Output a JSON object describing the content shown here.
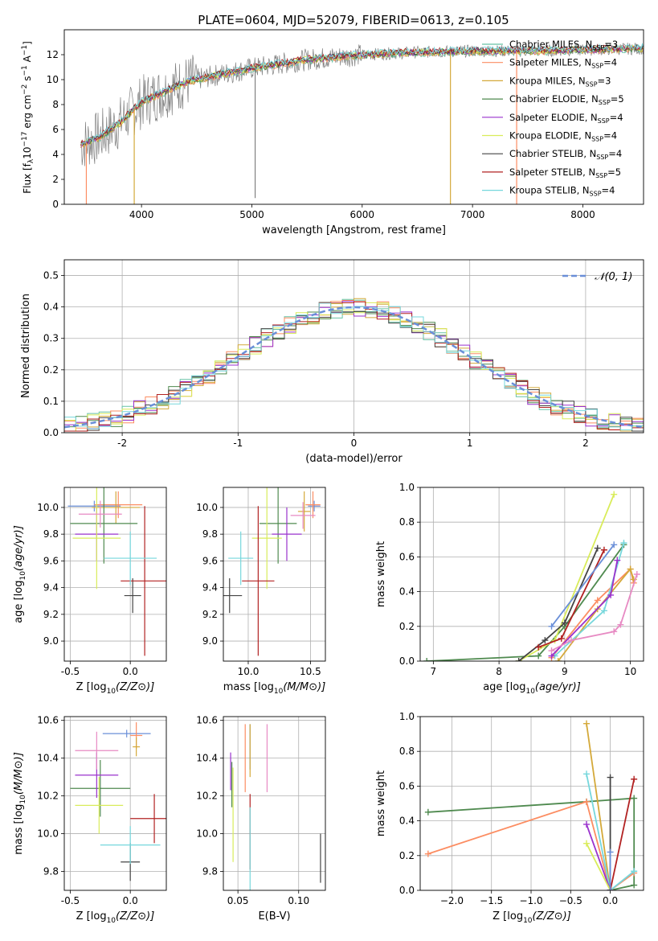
{
  "figure": {
    "title": "PLATE=0604, MJD=52079, FIBERID=0613, z=0.105"
  },
  "models": [
    {
      "name": "Chabrier MILES",
      "nssp": 3,
      "color": "#66c2a5"
    },
    {
      "name": "Salpeter MILES",
      "nssp": 4,
      "color": "#fc8d62"
    },
    {
      "name": "Kroupa MILES",
      "nssp": 3,
      "color": "#d4a93a"
    },
    {
      "name": "Chabrier ELODIE",
      "nssp": 5,
      "color": "#4f8a4f"
    },
    {
      "name": "Salpeter ELODIE",
      "nssp": 4,
      "color": "#9a32cd"
    },
    {
      "name": "Kroupa ELODIE",
      "nssp": 4,
      "color": "#d9ec5a"
    },
    {
      "name": "Chabrier STELIB",
      "nssp": 4,
      "color": "#444444"
    },
    {
      "name": "Salpeter STELIB",
      "nssp": 5,
      "color": "#b22222"
    },
    {
      "name": "Kroupa STELIB",
      "nssp": 4,
      "color": "#76d7dc"
    }
  ],
  "chart_data": [
    {
      "id": "spectrum",
      "type": "line",
      "xlabel": "wavelength [Angstrom, rest frame]",
      "ylabel": "Flux [f",
      "xlim": [
        3300,
        8550
      ],
      "ylim": [
        0,
        14
      ],
      "xticks": [
        4000,
        5000,
        6000,
        7000,
        8000
      ],
      "yticks": [
        0,
        2,
        4,
        6,
        8,
        10,
        12
      ],
      "legend_position": "top-right",
      "continuum": [
        [
          3450,
          4.8
        ],
        [
          3600,
          5.3
        ],
        [
          3800,
          6.5
        ],
        [
          4000,
          8.2
        ],
        [
          4200,
          9.0
        ],
        [
          4400,
          9.8
        ],
        [
          4700,
          10.4
        ],
        [
          5000,
          10.9
        ],
        [
          5500,
          11.6
        ],
        [
          6000,
          12.0
        ],
        [
          6500,
          12.2
        ],
        [
          7000,
          12.3
        ],
        [
          7500,
          12.3
        ],
        [
          8000,
          12.4
        ],
        [
          8550,
          12.5
        ]
      ],
      "absorption_lines": [
        [
          3500,
          0.0
        ],
        [
          3934,
          0.0
        ],
        [
          5030,
          0.5
        ],
        [
          6800,
          0.0
        ],
        [
          7400,
          0.0
        ]
      ]
    },
    {
      "id": "residuals",
      "type": "histogram",
      "xlabel": "(data-model)/error",
      "ylabel": "Normed distribution",
      "xlim": [
        -2.5,
        2.5
      ],
      "ylim": [
        0,
        0.55
      ],
      "xticks": [
        -2,
        -1,
        0,
        1,
        2
      ],
      "yticks": [
        0.0,
        0.1,
        0.2,
        0.3,
        0.4,
        0.5
      ],
      "legend": "𝒩(0, 1)",
      "legend_position": "top-right",
      "bin_width": 0.1
    },
    {
      "id": "age_vs_Z",
      "type": "errorbar",
      "xlabel": "Z [log",
      "ylabel": "age  [log",
      "xlim": [
        -0.55,
        0.3
      ],
      "ylim": [
        8.85,
        10.15
      ],
      "xticks": [
        -0.5,
        0.0
      ],
      "yticks": [
        9.0,
        9.2,
        9.4,
        9.6,
        9.8,
        10.0
      ],
      "points": [
        {
          "x": -0.3,
          "y": 10.01,
          "xerr": 0.22,
          "yerr": 0.04
        },
        {
          "x": -0.1,
          "y": 10.02,
          "xerr": 0.2,
          "yerr": 0.1
        },
        {
          "x": -0.12,
          "y": 10.0,
          "xerr": 0.2,
          "yerr": 0.12
        },
        {
          "x": -0.22,
          "y": 9.88,
          "xerr": 0.28,
          "yerr": 0.3
        },
        {
          "x": -0.28,
          "y": 9.8,
          "xerr": 0.18,
          "yerr": 0.2
        },
        {
          "x": -0.28,
          "y": 9.77,
          "xerr": 0.2,
          "yerr": 0.38
        },
        {
          "x": 0.02,
          "y": 9.34,
          "xerr": 0.07,
          "yerr": 0.13
        },
        {
          "x": 0.12,
          "y": 9.45,
          "xerr": 0.2,
          "yerr": 0.56
        },
        {
          "x": 0.0,
          "y": 9.62,
          "xerr": 0.22,
          "yerr": 0.2
        },
        {
          "x": -0.25,
          "y": 9.95,
          "xerr": 0.18,
          "yerr": 0.1
        }
      ]
    },
    {
      "id": "age_vs_mass",
      "type": "errorbar",
      "xlabel": "mass [log",
      "ylabel": "",
      "xlim": [
        9.8,
        10.62
      ],
      "ylim": [
        8.85,
        10.15
      ],
      "xticks": [
        10.0,
        10.5
      ],
      "yticks": [
        9.0,
        9.2,
        9.4,
        9.6,
        9.8,
        10.0
      ],
      "points": [
        {
          "x": 10.53,
          "y": 10.01,
          "yerr": 0.04,
          "xerr": 0.05
        },
        {
          "x": 10.52,
          "y": 10.02,
          "yerr": 0.1,
          "xerr": 0.06
        },
        {
          "x": 10.45,
          "y": 9.97,
          "yerr": 0.15,
          "xerr": 0.05
        },
        {
          "x": 10.24,
          "y": 9.88,
          "yerr": 0.3,
          "xerr": 0.15
        },
        {
          "x": 10.31,
          "y": 9.8,
          "yerr": 0.2,
          "xerr": 0.12
        },
        {
          "x": 10.15,
          "y": 9.77,
          "yerr": 0.38,
          "xerr": 0.12
        },
        {
          "x": 9.85,
          "y": 9.34,
          "yerr": 0.13,
          "xerr": 0.1
        },
        {
          "x": 10.08,
          "y": 9.45,
          "yerr": 0.56,
          "xerr": 0.13
        },
        {
          "x": 9.94,
          "y": 9.62,
          "yerr": 0.2,
          "xerr": 0.1
        },
        {
          "x": 10.44,
          "y": 9.94,
          "yerr": 0.1,
          "xerr": 0.1
        }
      ]
    },
    {
      "id": "massweight_vs_age",
      "type": "line",
      "xlabel": "age  [log",
      "ylabel": "mass weight",
      "xlim": [
        6.8,
        10.2
      ],
      "ylim": [
        0,
        1
      ],
      "xticks": [
        7,
        8,
        9,
        10
      ],
      "yticks": [
        0.0,
        0.2,
        0.4,
        0.6,
        0.8,
        1.0
      ],
      "series": [
        [
          [
            6.9,
            0.0
          ],
          [
            8.6,
            0.03
          ],
          [
            9.0,
            0.2
          ],
          [
            9.9,
            0.67
          ]
        ],
        [
          [
            8.8,
            0.02
          ],
          [
            9.5,
            0.35
          ],
          [
            10.0,
            0.53
          ],
          [
            10.05,
            0.45
          ]
        ],
        [
          [
            8.9,
            0.0
          ],
          [
            9.5,
            0.3
          ],
          [
            10.0,
            0.53
          ],
          [
            10.05,
            0.47
          ]
        ],
        [
          [
            8.85,
            0.03
          ],
          [
            9.6,
            0.29
          ],
          [
            9.9,
            0.68
          ]
        ],
        [
          [
            8.8,
            0.03
          ],
          [
            9.7,
            0.38
          ],
          [
            9.8,
            0.58
          ]
        ],
        [
          [
            8.3,
            0.0
          ],
          [
            8.85,
            0.12
          ],
          [
            9.75,
            0.96
          ]
        ],
        [
          [
            8.3,
            0.0
          ],
          [
            8.7,
            0.12
          ],
          [
            9.0,
            0.22
          ],
          [
            9.5,
            0.65
          ]
        ],
        [
          [
            8.6,
            0.08
          ],
          [
            8.95,
            0.13
          ],
          [
            9.6,
            0.64
          ]
        ],
        [
          [
            8.8,
            0.2
          ],
          [
            9.75,
            0.67
          ]
        ],
        [
          [
            8.8,
            0.06
          ],
          [
            9.1,
            0.12
          ],
          [
            9.75,
            0.17
          ],
          [
            9.85,
            0.21
          ],
          [
            10.1,
            0.5
          ]
        ]
      ]
    },
    {
      "id": "mass_vs_Z",
      "type": "errorbar",
      "xlabel": "Z [log",
      "ylabel": "mass [log",
      "xlim": [
        -0.55,
        0.3
      ],
      "ylim": [
        9.7,
        10.62
      ],
      "xticks": [
        -0.5,
        0.0
      ],
      "yticks": [
        9.8,
        10.0,
        10.2,
        10.4,
        10.6
      ],
      "points": [
        {
          "x": -0.03,
          "y": 10.53,
          "xerr": 0.2,
          "yerr": 0.02
        },
        {
          "x": 0.05,
          "y": 10.52,
          "xerr": 0.05,
          "yerr": 0.07
        },
        {
          "x": 0.05,
          "y": 10.46,
          "xerr": 0.03,
          "yerr": 0.05
        },
        {
          "x": -0.25,
          "y": 10.24,
          "xerr": 0.25,
          "yerr": 0.15
        },
        {
          "x": -0.28,
          "y": 10.31,
          "xerr": 0.18,
          "yerr": 0.12
        },
        {
          "x": -0.26,
          "y": 10.15,
          "xerr": 0.2,
          "yerr": 0.15
        },
        {
          "x": 0.0,
          "y": 9.85,
          "xerr": 0.08,
          "yerr": 0.1
        },
        {
          "x": 0.2,
          "y": 10.08,
          "xerr": 0.2,
          "yerr": 0.13
        },
        {
          "x": 0.0,
          "y": 9.94,
          "xerr": 0.25,
          "yerr": 0.1
        },
        {
          "x": -0.28,
          "y": 10.44,
          "xerr": 0.18,
          "yerr": 0.1
        }
      ]
    },
    {
      "id": "mass_vs_EBV",
      "type": "errorbar",
      "xlabel": "E(B-V)",
      "ylabel": "",
      "xlim": [
        0.038,
        0.122
      ],
      "ylim": [
        9.7,
        10.62
      ],
      "xticks": [
        0.05,
        0.1
      ],
      "yticks": [
        9.8,
        10.0,
        10.2,
        10.4,
        10.6
      ],
      "points": [
        {
          "x": 0.06,
          "y": 10.46,
          "yerr": 0.12
        },
        {
          "x": 0.056,
          "y": 10.4,
          "yerr": 0.18
        },
        {
          "x": 0.06,
          "y": 10.44,
          "yerr": 0.14
        },
        {
          "x": 0.045,
          "y": 10.26,
          "yerr": 0.12
        },
        {
          "x": 0.044,
          "y": 10.33,
          "yerr": 0.1
        },
        {
          "x": 0.046,
          "y": 10.1,
          "yerr": 0.25
        },
        {
          "x": 0.118,
          "y": 9.87,
          "yerr": 0.13
        },
        {
          "x": 0.06,
          "y": 10.01,
          "yerr": 0.2
        },
        {
          "x": 0.06,
          "y": 9.92,
          "yerr": 0.22
        },
        {
          "x": 0.074,
          "y": 10.4,
          "yerr": 0.18
        }
      ]
    },
    {
      "id": "massweight_vs_Z",
      "type": "line",
      "xlabel": "Z [log",
      "ylabel": "mass weight",
      "xlim": [
        -2.4,
        0.42
      ],
      "ylim": [
        0,
        1
      ],
      "xticks": [
        -2.0,
        -1.5,
        -1.0,
        -0.5,
        0.0
      ],
      "yticks": [
        0.0,
        0.2,
        0.4,
        0.6,
        0.8,
        1.0
      ],
      "series": [
        [
          [
            -2.3,
            0.45
          ],
          [
            -0.3,
            0.51
          ],
          [
            0.3,
            0.53
          ],
          [
            0.3,
            0.03
          ],
          [
            0.0,
            0.0
          ]
        ],
        [
          [
            -2.3,
            0.21
          ],
          [
            -0.3,
            0.51
          ],
          [
            0.0,
            0.0
          ],
          [
            0.3,
            0.1
          ]
        ],
        [
          [
            -0.3,
            0.96
          ],
          [
            0.0,
            0.0
          ]
        ],
        [
          [
            -0.3,
            0.67
          ],
          [
            0.0,
            0.0
          ],
          [
            0.3,
            0.11
          ]
        ],
        [
          [
            -0.3,
            0.38
          ],
          [
            0.0,
            0.0
          ]
        ],
        [
          [
            -0.3,
            0.27
          ],
          [
            0.0,
            0.0
          ]
        ],
        [
          [
            0.0,
            0.65
          ],
          [
            0.0,
            0.0
          ]
        ],
        [
          [
            0.3,
            0.64
          ],
          [
            0.0,
            0.0
          ]
        ],
        [
          [
            0.0,
            0.22
          ],
          [
            0.0,
            0.0
          ]
        ]
      ]
    }
  ]
}
